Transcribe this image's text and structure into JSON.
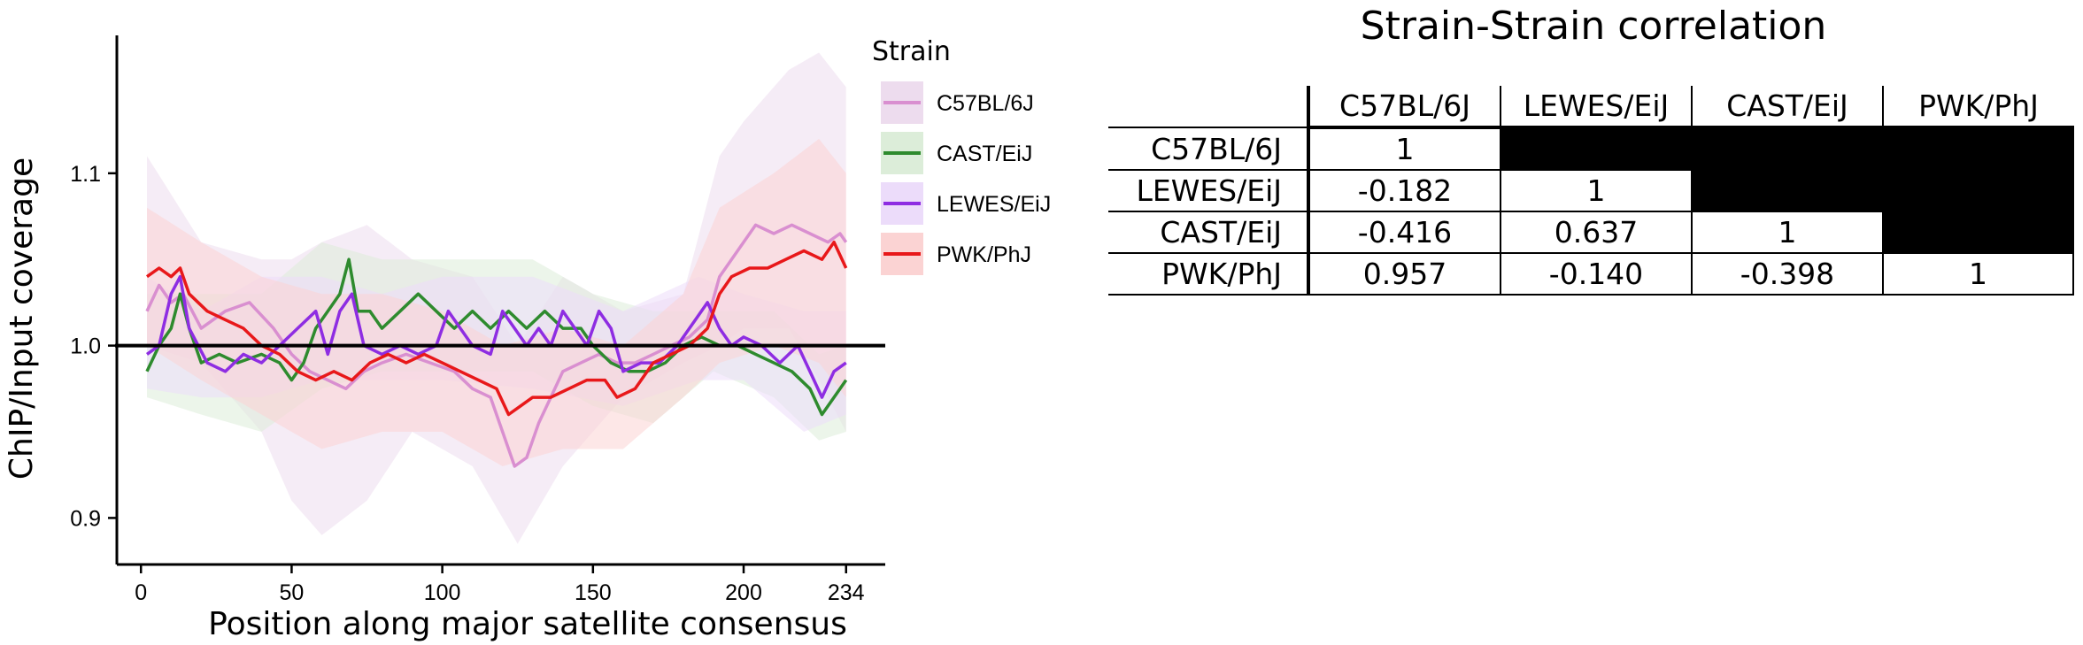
{
  "chart_data": [
    {
      "type": "line",
      "title": "",
      "xlabel": "Position along major satellite consensus",
      "ylabel": "ChIP/Input coverage",
      "xlim": [
        -8,
        247
      ],
      "ylim": [
        0.873,
        1.18
      ],
      "x_ticks": [
        0,
        50,
        100,
        150,
        200,
        234
      ],
      "y_ticks": [
        0.9,
        1.0,
        1.1
      ],
      "reference_line_y": 1.0,
      "legend": {
        "title": "Strain",
        "position": "right"
      },
      "series": [
        {
          "name": "C57BL/6J",
          "color": "#d98fd0",
          "band_color": "#eddcee",
          "knots": [
            [
              2,
              1.02
            ],
            [
              6,
              1.035
            ],
            [
              10,
              1.025
            ],
            [
              14,
              1.03
            ],
            [
              20,
              1.01
            ],
            [
              28,
              1.02
            ],
            [
              36,
              1.025
            ],
            [
              44,
              1.01
            ],
            [
              50,
              0.995
            ],
            [
              56,
              0.985
            ],
            [
              62,
              0.98
            ],
            [
              68,
              0.975
            ],
            [
              74,
              0.985
            ],
            [
              80,
              0.99
            ],
            [
              88,
              0.995
            ],
            [
              96,
              0.99
            ],
            [
              104,
              0.985
            ],
            [
              110,
              0.975
            ],
            [
              116,
              0.97
            ],
            [
              120,
              0.95
            ],
            [
              124,
              0.93
            ],
            [
              128,
              0.935
            ],
            [
              132,
              0.955
            ],
            [
              136,
              0.97
            ],
            [
              140,
              0.985
            ],
            [
              146,
              0.99
            ],
            [
              152,
              0.995
            ],
            [
              158,
              0.99
            ],
            [
              164,
              0.99
            ],
            [
              170,
              0.995
            ],
            [
              176,
              1.0
            ],
            [
              182,
              1.005
            ],
            [
              188,
              1.015
            ],
            [
              192,
              1.04
            ],
            [
              196,
              1.05
            ],
            [
              200,
              1.06
            ],
            [
              204,
              1.07
            ],
            [
              210,
              1.065
            ],
            [
              216,
              1.07
            ],
            [
              222,
              1.065
            ],
            [
              228,
              1.06
            ],
            [
              232,
              1.065
            ],
            [
              234,
              1.06
            ]
          ],
          "band_knots": [
            [
              2,
              1.0,
              1.11
            ],
            [
              20,
              0.99,
              1.06
            ],
            [
              40,
              0.95,
              1.05
            ],
            [
              50,
              0.91,
              1.05
            ],
            [
              60,
              0.89,
              1.06
            ],
            [
              75,
              0.91,
              1.07
            ],
            [
              90,
              0.95,
              1.05
            ],
            [
              110,
              0.93,
              1.04
            ],
            [
              125,
              0.885,
              1.0
            ],
            [
              140,
              0.93,
              1.04
            ],
            [
              160,
              0.97,
              1.02
            ],
            [
              180,
              0.99,
              1.03
            ],
            [
              192,
              1.0,
              1.11
            ],
            [
              200,
              1.01,
              1.13
            ],
            [
              215,
              1.01,
              1.16
            ],
            [
              225,
              0.98,
              1.17
            ],
            [
              234,
              0.95,
              1.15
            ]
          ]
        },
        {
          "name": "CAST/EiJ",
          "color": "#2e8b2e",
          "band_color": "#dcedd9",
          "knots": [
            [
              2,
              0.985
            ],
            [
              6,
              1.0
            ],
            [
              10,
              1.01
            ],
            [
              13,
              1.03
            ],
            [
              16,
              1.01
            ],
            [
              20,
              0.99
            ],
            [
              26,
              0.995
            ],
            [
              32,
              0.99
            ],
            [
              40,
              0.995
            ],
            [
              46,
              0.99
            ],
            [
              50,
              0.98
            ],
            [
              54,
              0.99
            ],
            [
              58,
              1.01
            ],
            [
              62,
              1.02
            ],
            [
              66,
              1.03
            ],
            [
              69,
              1.05
            ],
            [
              72,
              1.02
            ],
            [
              76,
              1.02
            ],
            [
              80,
              1.01
            ],
            [
              86,
              1.02
            ],
            [
              92,
              1.03
            ],
            [
              98,
              1.02
            ],
            [
              104,
              1.01
            ],
            [
              110,
              1.02
            ],
            [
              116,
              1.01
            ],
            [
              122,
              1.02
            ],
            [
              128,
              1.01
            ],
            [
              134,
              1.02
            ],
            [
              140,
              1.01
            ],
            [
              146,
              1.01
            ],
            [
              150,
              1.0
            ],
            [
              156,
              0.99
            ],
            [
              162,
              0.985
            ],
            [
              168,
              0.985
            ],
            [
              174,
              0.99
            ],
            [
              180,
              1.0
            ],
            [
              186,
              1.005
            ],
            [
              192,
              1.0
            ],
            [
              198,
              1.0
            ],
            [
              204,
              0.995
            ],
            [
              210,
              0.99
            ],
            [
              216,
              0.985
            ],
            [
              222,
              0.975
            ],
            [
              226,
              0.96
            ],
            [
              230,
              0.97
            ],
            [
              234,
              0.98
            ]
          ],
          "band_knots": [
            [
              2,
              0.97,
              1.03
            ],
            [
              20,
              0.96,
              1.03
            ],
            [
              40,
              0.95,
              1.03
            ],
            [
              60,
              0.975,
              1.06
            ],
            [
              80,
              0.985,
              1.05
            ],
            [
              100,
              0.985,
              1.05
            ],
            [
              130,
              0.985,
              1.05
            ],
            [
              150,
              0.965,
              1.03
            ],
            [
              170,
              0.955,
              1.02
            ],
            [
              190,
              0.985,
              1.02
            ],
            [
              210,
              0.97,
              1.02
            ],
            [
              225,
              0.945,
              0.995
            ],
            [
              234,
              0.95,
              1.0
            ]
          ]
        },
        {
          "name": "LEWES/EiJ",
          "color": "#8e2de2",
          "band_color": "#ecdcfa",
          "knots": [
            [
              2,
              0.995
            ],
            [
              6,
              1.0
            ],
            [
              10,
              1.03
            ],
            [
              13,
              1.04
            ],
            [
              16,
              1.01
            ],
            [
              22,
              0.99
            ],
            [
              28,
              0.985
            ],
            [
              34,
              0.995
            ],
            [
              40,
              0.99
            ],
            [
              46,
              1.0
            ],
            [
              52,
              1.01
            ],
            [
              58,
              1.02
            ],
            [
              62,
              0.995
            ],
            [
              66,
              1.02
            ],
            [
              70,
              1.03
            ],
            [
              74,
              1.0
            ],
            [
              80,
              0.995
            ],
            [
              86,
              1.0
            ],
            [
              92,
              0.995
            ],
            [
              98,
              1.0
            ],
            [
              102,
              1.02
            ],
            [
              106,
              1.01
            ],
            [
              110,
              1.0
            ],
            [
              116,
              0.995
            ],
            [
              120,
              1.02
            ],
            [
              124,
              1.01
            ],
            [
              128,
              1.0
            ],
            [
              132,
              1.01
            ],
            [
              136,
              1.0
            ],
            [
              140,
              1.02
            ],
            [
              144,
              1.01
            ],
            [
              148,
              1.0
            ],
            [
              152,
              1.02
            ],
            [
              156,
              1.01
            ],
            [
              160,
              0.985
            ],
            [
              166,
              0.99
            ],
            [
              172,
              0.99
            ],
            [
              178,
              1.0
            ],
            [
              184,
              1.015
            ],
            [
              188,
              1.025
            ],
            [
              192,
              1.01
            ],
            [
              196,
              1.0
            ],
            [
              200,
              1.005
            ],
            [
              206,
              1.0
            ],
            [
              212,
              0.99
            ],
            [
              218,
              1.0
            ],
            [
              222,
              0.985
            ],
            [
              226,
              0.97
            ],
            [
              230,
              0.985
            ],
            [
              234,
              0.99
            ]
          ],
          "band_knots": [
            [
              2,
              0.975,
              1.04
            ],
            [
              20,
              0.97,
              1.02
            ],
            [
              40,
              0.97,
              1.04
            ],
            [
              60,
              0.98,
              1.04
            ],
            [
              80,
              0.98,
              1.03
            ],
            [
              100,
              0.98,
              1.04
            ],
            [
              130,
              0.975,
              1.04
            ],
            [
              160,
              0.965,
              1.02
            ],
            [
              185,
              0.98,
              1.04
            ],
            [
              200,
              0.98,
              1.03
            ],
            [
              220,
              0.95,
              1.02
            ],
            [
              234,
              0.96,
              1.02
            ]
          ]
        },
        {
          "name": "PWK/PhJ",
          "color": "#e8181a",
          "band_color": "#fbd3d3",
          "knots": [
            [
              2,
              1.04
            ],
            [
              6,
              1.045
            ],
            [
              10,
              1.04
            ],
            [
              13,
              1.045
            ],
            [
              16,
              1.03
            ],
            [
              22,
              1.02
            ],
            [
              28,
              1.015
            ],
            [
              34,
              1.01
            ],
            [
              40,
              1.0
            ],
            [
              46,
              0.995
            ],
            [
              52,
              0.985
            ],
            [
              58,
              0.98
            ],
            [
              64,
              0.985
            ],
            [
              70,
              0.98
            ],
            [
              76,
              0.99
            ],
            [
              82,
              0.995
            ],
            [
              88,
              0.99
            ],
            [
              94,
              0.995
            ],
            [
              100,
              0.99
            ],
            [
              106,
              0.985
            ],
            [
              112,
              0.98
            ],
            [
              118,
              0.975
            ],
            [
              122,
              0.96
            ],
            [
              126,
              0.965
            ],
            [
              130,
              0.97
            ],
            [
              136,
              0.97
            ],
            [
              142,
              0.975
            ],
            [
              148,
              0.98
            ],
            [
              154,
              0.98
            ],
            [
              158,
              0.97
            ],
            [
              164,
              0.975
            ],
            [
              170,
              0.99
            ],
            [
              176,
              0.995
            ],
            [
              182,
              1.0
            ],
            [
              188,
              1.01
            ],
            [
              192,
              1.03
            ],
            [
              196,
              1.04
            ],
            [
              202,
              1.045
            ],
            [
              208,
              1.045
            ],
            [
              214,
              1.05
            ],
            [
              220,
              1.055
            ],
            [
              226,
              1.05
            ],
            [
              230,
              1.06
            ],
            [
              234,
              1.045
            ]
          ],
          "band_knots": [
            [
              2,
              1.0,
              1.08
            ],
            [
              20,
              0.98,
              1.06
            ],
            [
              40,
              0.96,
              1.04
            ],
            [
              60,
              0.94,
              1.03
            ],
            [
              80,
              0.95,
              1.03
            ],
            [
              100,
              0.95,
              1.02
            ],
            [
              120,
              0.93,
              1.0
            ],
            [
              140,
              0.94,
              1.01
            ],
            [
              160,
              0.94,
              1.0
            ],
            [
              180,
              0.97,
              1.03
            ],
            [
              192,
              0.99,
              1.08
            ],
            [
              210,
              1.0,
              1.1
            ],
            [
              225,
              0.99,
              1.12
            ],
            [
              234,
              0.97,
              1.1
            ]
          ]
        }
      ]
    },
    {
      "type": "table",
      "title": "Strain-Strain correlation",
      "columns": [
        "C57BL/6J",
        "LEWES/EiJ",
        "CAST/EiJ",
        "PWK/PhJ"
      ],
      "rows": [
        {
          "label": "C57BL/6J",
          "values": [
            "1",
            null,
            null,
            null
          ]
        },
        {
          "label": "LEWES/EiJ",
          "values": [
            "-0.182",
            "1",
            null,
            null
          ]
        },
        {
          "label": "CAST/EiJ",
          "values": [
            "-0.416",
            "0.637",
            "1",
            null
          ]
        },
        {
          "label": "PWK/PhJ",
          "values": [
            "0.957",
            "-0.140",
            "-0.398",
            "1"
          ]
        }
      ]
    }
  ]
}
